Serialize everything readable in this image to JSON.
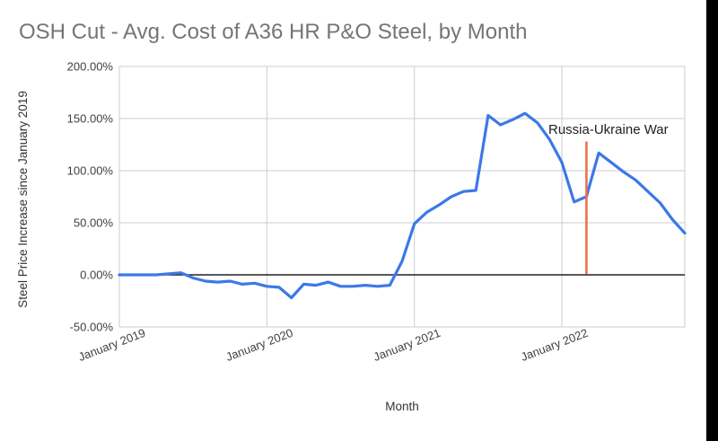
{
  "page": {
    "background_color": "#ffffff",
    "right_edge_bar_color": "#000000"
  },
  "chart_data": {
    "type": "line",
    "title": "OSH Cut - Avg. Cost of A36 HR P&O Steel, by Month",
    "title_color": "#757575",
    "xlabel": "Month",
    "ylabel": "Steel Price Increase since January 2019",
    "ylim": [
      -50,
      200
    ],
    "grid": true,
    "legend": "none",
    "grid_color": "#cccccc",
    "zero_line_color": "#212121",
    "tick_text_color": "#404040",
    "y_tick_values": [
      200,
      150,
      100,
      50,
      0,
      -50
    ],
    "y_tick_labels": [
      "200.00%",
      "150.00%",
      "100.00%",
      "50.00%",
      "0.00%",
      "-50.00%"
    ],
    "x_ticks": [
      {
        "index": 0,
        "label": "January 2019"
      },
      {
        "index": 12,
        "label": "January 2020"
      },
      {
        "index": 24,
        "label": "January 2021"
      },
      {
        "index": 36,
        "label": "January 2022"
      }
    ],
    "categories": [
      "Jan 2019",
      "Feb 2019",
      "Mar 2019",
      "Apr 2019",
      "May 2019",
      "Jun 2019",
      "Jul 2019",
      "Aug 2019",
      "Sep 2019",
      "Oct 2019",
      "Nov 2019",
      "Dec 2019",
      "Jan 2020",
      "Feb 2020",
      "Mar 2020",
      "Apr 2020",
      "May 2020",
      "Jun 2020",
      "Jul 2020",
      "Aug 2020",
      "Sep 2020",
      "Oct 2020",
      "Nov 2020",
      "Dec 2020",
      "Jan 2021",
      "Feb 2021",
      "Mar 2021",
      "Apr 2021",
      "May 2021",
      "Jun 2021",
      "Jul 2021",
      "Aug 2021",
      "Sep 2021",
      "Oct 2021",
      "Nov 2021",
      "Dec 2021",
      "Jan 2022",
      "Feb 2022",
      "Mar 2022",
      "Apr 2022",
      "May 2022",
      "Jun 2022",
      "Jul 2022",
      "Aug 2022",
      "Sep 2022",
      "Oct 2022",
      "Nov 2022"
    ],
    "series": [
      {
        "color": "#3c78e8",
        "values": [
          0,
          0,
          0,
          0,
          1,
          2,
          -3,
          -6,
          -7,
          -6,
          -9,
          -8,
          -11,
          -12,
          -22,
          -9,
          -10,
          -7,
          -11,
          -11,
          -10,
          -11,
          -10,
          13,
          49,
          60,
          67,
          75,
          80,
          81,
          153,
          144,
          149,
          155,
          146,
          130,
          108,
          70,
          75,
          117,
          108,
          99,
          91,
          80,
          69,
          53,
          40
        ]
      }
    ],
    "annotation": {
      "label": "Russia-Ukraine War",
      "month": "Mar 2022",
      "month_index": 38,
      "line_top_value": 128,
      "color": "#e8724a"
    }
  }
}
